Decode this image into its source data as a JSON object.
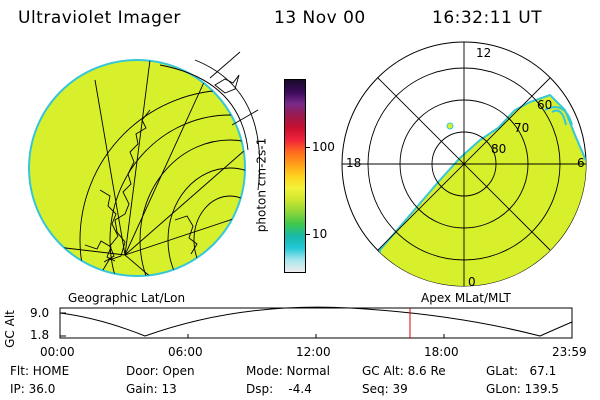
{
  "header": {
    "app_title": "Ultraviolet Imager",
    "date": "13 Nov 00",
    "time": "16:32:11 UT"
  },
  "colors": {
    "fill": "#d8ef2c",
    "rim": "#36c7d7",
    "grid": "#000000",
    "marker": "#e00000"
  },
  "left_panel": {
    "caption": "Geographic Lat/Lon"
  },
  "right_panel": {
    "caption": "Apex MLat/MLT",
    "mlt_labels": {
      "top": "12",
      "left": "18",
      "right": "6",
      "bottom": "0"
    },
    "mlat_labels": [
      "60",
      "70",
      "80"
    ]
  },
  "colorbar": {
    "unit_label": "photon cm-2s-1",
    "ticks": [
      "100",
      "10"
    ],
    "stops": [
      "#1a0a2a",
      "#3a0a5a",
      "#7a2a8a",
      "#9b1a4c",
      "#c8102e",
      "#f0243a",
      "#ff6a1e",
      "#ff9e1a",
      "#ffd21e",
      "#f2f23a",
      "#cce62e",
      "#8ed63a",
      "#3ec84a",
      "#18b8a8",
      "#22c8d8",
      "#a8e6ec",
      "#ececec"
    ]
  },
  "timeline": {
    "axis_label": "GC Alt",
    "y_ticks": [
      "9.0",
      "1.8"
    ],
    "x_ticks": [
      "00:00",
      "06:00",
      "12:00",
      "18:00",
      "23:59"
    ]
  },
  "status": {
    "row1": {
      "flt": "Flt: HOME",
      "door": "Door: Open",
      "mode": "Mode: Normal",
      "gc_alt": "GC Alt: 8.6 Re",
      "glat": "GLat:   67.1"
    },
    "row2": {
      "ip": "IP: 36.0",
      "gain": "Gain: 13",
      "dsp": "Dsp:    -4.4",
      "seq": "Seq: 39",
      "glon": "GLon: 139.5"
    }
  }
}
